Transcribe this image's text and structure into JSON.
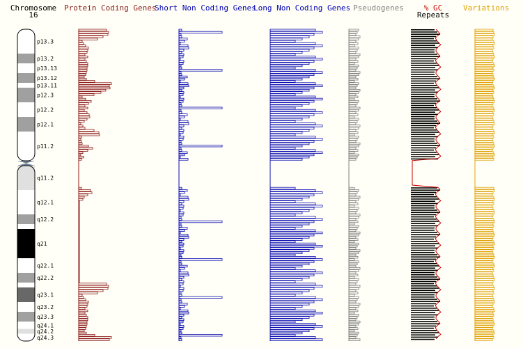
{
  "title": {
    "line1": "Chromosome",
    "line2": "16"
  },
  "colors": {
    "protein": "#8b1a1a",
    "short_nc": "#0b0bb3",
    "long_nc": "#0b0bb3",
    "pseudo": "#808080",
    "gc": "#cc0000",
    "repeats": "#000000",
    "variations": "#e0a000",
    "band_gneg": "#ffffff",
    "band_gpos25": "#e0e0e0",
    "band_gpos50": "#a0a0a0",
    "band_gpos75": "#686868",
    "band_gpos100": "#000000",
    "centromere": "#6f8297"
  },
  "chart_data": {
    "type": "bar",
    "headers": {
      "protein": "Protein Coding Genes",
      "short_nc": "Short Non Coding Genes",
      "long_nc": "Long Non Coding Genes",
      "pseudo": "Pseudogenes",
      "gc": "% GC",
      "repeats": "Repeats",
      "variations": "Variations"
    },
    "bands": [
      {
        "label": "p13.3",
        "start": 0,
        "end": 5,
        "stain": "gneg"
      },
      {
        "label": "p13.2",
        "start": 5,
        "end": 7,
        "stain": "gpos50"
      },
      {
        "label": "p13.13",
        "start": 7,
        "end": 9,
        "stain": "gneg"
      },
      {
        "label": "p13.12",
        "start": 9,
        "end": 11,
        "stain": "gpos50"
      },
      {
        "label": "p13.11",
        "start": 11,
        "end": 12,
        "stain": "gneg"
      },
      {
        "label": "p12.3",
        "start": 12,
        "end": 15,
        "stain": "gpos50"
      },
      {
        "label": "p12.2",
        "start": 15,
        "end": 18,
        "stain": "gneg"
      },
      {
        "label": "p12.1",
        "start": 18,
        "end": 21,
        "stain": "gpos50"
      },
      {
        "label": "p11.2",
        "start": 21,
        "end": 27,
        "stain": "gneg"
      },
      {
        "label": "q11.2",
        "start": 28,
        "end": 33,
        "stain": "gpos25"
      },
      {
        "label": "q12.1",
        "start": 33,
        "end": 38,
        "stain": "gneg"
      },
      {
        "label": "q12.2",
        "start": 38,
        "end": 40,
        "stain": "gpos50"
      },
      {
        "label": "",
        "start": 40,
        "end": 41,
        "stain": "gneg"
      },
      {
        "label": "q21",
        "start": 41,
        "end": 47,
        "stain": "gpos100"
      },
      {
        "label": "q22.1",
        "start": 47,
        "end": 50,
        "stain": "gneg"
      },
      {
        "label": "q22.2",
        "start": 50,
        "end": 52,
        "stain": "gpos50"
      },
      {
        "label": "",
        "start": 52,
        "end": 53,
        "stain": "gneg"
      },
      {
        "label": "q23.1",
        "start": 53,
        "end": 56,
        "stain": "gpos75"
      },
      {
        "label": "q23.2",
        "start": 56,
        "end": 58,
        "stain": "gneg"
      },
      {
        "label": "q23.3",
        "start": 58,
        "end": 60,
        "stain": "gpos50"
      },
      {
        "label": "q24.1",
        "start": 60,
        "end": 61.5,
        "stain": "gneg"
      },
      {
        "label": "q24.2",
        "start": 61.5,
        "end": 62.5,
        "stain": "gpos25"
      },
      {
        "label": "q24.3",
        "start": 62.5,
        "end": 64,
        "stain": "gneg"
      }
    ],
    "centromere": [
      27,
      28
    ],
    "bins": 64,
    "series": [
      {
        "key": "protein",
        "values": [
          40,
          43,
          42,
          35,
          27,
          5,
          7,
          10,
          14,
          13,
          12,
          9,
          13,
          9,
          11,
          13,
          13,
          12,
          12,
          11,
          10,
          8,
          11,
          23,
          47,
          44,
          45,
          39,
          32,
          22,
          5,
          10,
          18,
          14,
          9,
          13,
          8,
          12,
          15,
          16,
          12,
          8,
          3,
          6,
          9,
          22,
          29,
          30,
          4,
          3,
          4,
          5,
          14,
          20,
          13,
          6,
          3,
          7,
          4,
          9,
          5,
          1,
          1,
          6,
          9,
          9,
          3,
          5,
          18,
          15,
          5,
          4,
          17,
          19,
          13,
          8,
          6,
          1,
          1,
          1,
          1,
          1,
          1,
          1,
          1,
          1,
          1,
          1,
          1,
          1,
          1,
          1,
          1,
          1,
          1,
          1,
          1,
          1,
          1,
          1,
          1,
          1,
          1,
          1,
          1,
          1,
          1,
          1,
          1,
          1,
          1,
          1,
          1,
          1
        ]
      },
      {
        "key": "short_nc",
        "values": [
          4,
          62,
          3,
          4,
          12,
          8,
          2,
          13,
          14,
          7,
          4,
          7,
          6,
          2,
          7,
          6,
          3
        ]
      },
      {
        "key": "long_nc",
        "values": [
          65,
          75,
          63,
          56,
          46,
          36
        ]
      },
      {
        "key": "pseudo",
        "values": [
          14,
          12,
          10,
          16,
          14,
          10,
          13,
          8
        ]
      },
      {
        "key": "gc",
        "values": [
          38,
          41,
          44,
          40,
          37,
          39,
          42,
          45,
          41,
          38
        ]
      },
      {
        "key": "repeats",
        "values": [
          34,
          38,
          42,
          36,
          33,
          37,
          40,
          35,
          39,
          34
        ]
      },
      {
        "key": "variations",
        "values": [
          26,
          27,
          28,
          26,
          25,
          27,
          28,
          26,
          27,
          25
        ]
      }
    ]
  }
}
